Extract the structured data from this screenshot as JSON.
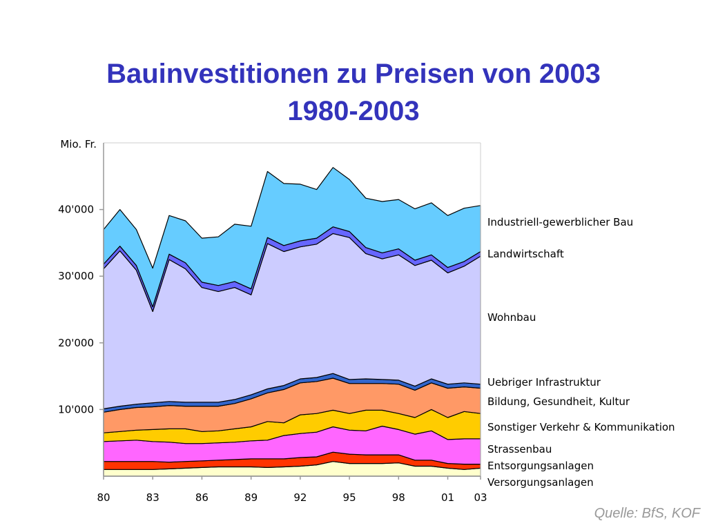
{
  "chart_data": {
    "type": "area",
    "stacked": true,
    "title": "Bauinvestitionen zu Preisen von 2003",
    "subtitle": "1980-2003",
    "ylabel": "Mio. Fr.",
    "ylim": [
      0,
      50000
    ],
    "yticks": [
      10000,
      20000,
      30000,
      40000
    ],
    "ytick_labels": [
      "10'000",
      "20'000",
      "30'000",
      "40'000"
    ],
    "x": [
      1980,
      1981,
      1982,
      1983,
      1984,
      1985,
      1986,
      1987,
      1988,
      1989,
      1990,
      1991,
      1992,
      1993,
      1994,
      1995,
      1996,
      1997,
      1998,
      1999,
      2000,
      2001,
      2002,
      2003
    ],
    "xlim": [
      1980,
      2003
    ],
    "xticks": [
      1980,
      1983,
      1986,
      1989,
      1992,
      1995,
      1998,
      2001,
      2003
    ],
    "xtick_labels": [
      "80",
      "83",
      "86",
      "89",
      "92",
      "95",
      "98",
      "01",
      "03"
    ],
    "grid": false,
    "legend_position": "right",
    "series": [
      {
        "name": "Versorgungsanlagen",
        "color": "#ffffcc",
        "values": [
          1000,
          1000,
          1000,
          1000,
          1100,
          1200,
          1300,
          1400,
          1400,
          1400,
          1300,
          1400,
          1500,
          1700,
          2200,
          1900,
          1900,
          1900,
          2000,
          1500,
          1500,
          1200,
          1000,
          1200
        ]
      },
      {
        "name": "Entsorgungsanlagen",
        "color": "#ff3300",
        "values": [
          1200,
          1200,
          1200,
          1200,
          1000,
          1000,
          1000,
          1000,
          1100,
          1200,
          1300,
          1200,
          1300,
          1200,
          1400,
          1400,
          1300,
          1300,
          1200,
          900,
          900,
          700,
          800,
          600
        ]
      },
      {
        "name": "Strassenbau",
        "color": "#ff66ff",
        "values": [
          3000,
          3100,
          3200,
          3000,
          3000,
          2700,
          2600,
          2600,
          2600,
          2700,
          2800,
          3500,
          3600,
          3700,
          3800,
          3600,
          3600,
          4300,
          3800,
          3900,
          4400,
          3600,
          3800,
          3800
        ]
      },
      {
        "name": "Sonstiger Verkehr & Kommunikation",
        "color": "#ffcc00",
        "values": [
          1300,
          1400,
          1500,
          1800,
          2000,
          2200,
          1800,
          1800,
          2000,
          2100,
          2800,
          1900,
          2800,
          2800,
          2500,
          2500,
          3100,
          2400,
          2400,
          2500,
          3200,
          3300,
          4100,
          3800
        ]
      },
      {
        "name": "Bildung, Gesundheit, Kultur",
        "color": "#ff9966",
        "values": [
          3100,
          3300,
          3400,
          3400,
          3500,
          3400,
          3800,
          3700,
          3800,
          4200,
          4300,
          5000,
          4800,
          4800,
          4800,
          4500,
          4000,
          4000,
          4400,
          4100,
          4000,
          4400,
          3700,
          3800
        ]
      },
      {
        "name": "Uebriger Infrastruktur",
        "color": "#3366cc",
        "values": [
          500,
          500,
          500,
          600,
          600,
          600,
          600,
          600,
          600,
          600,
          600,
          600,
          600,
          600,
          700,
          600,
          700,
          600,
          600,
          600,
          600,
          600,
          600,
          600
        ]
      },
      {
        "name": "Wohnbau",
        "color": "#ccccff",
        "values": [
          21000,
          23300,
          20100,
          13700,
          21300,
          20000,
          17200,
          16600,
          16800,
          15000,
          21800,
          20100,
          19800,
          20000,
          21000,
          21300,
          18800,
          18100,
          18800,
          18100,
          17800,
          16700,
          17500,
          19200
        ]
      },
      {
        "name": "Landwirtschaft",
        "color": "#6666ff",
        "values": [
          700,
          700,
          700,
          700,
          800,
          900,
          800,
          900,
          900,
          900,
          900,
          900,
          900,
          900,
          1000,
          900,
          900,
          900,
          900,
          800,
          800,
          800,
          700,
          700
        ]
      },
      {
        "name": "Industriell-gewerblicher Bau",
        "color": "#66ccff",
        "values": [
          5200,
          5500,
          5400,
          5800,
          5800,
          6300,
          6600,
          7300,
          8600,
          9400,
          9900,
          9300,
          8500,
          7300,
          8900,
          7800,
          7400,
          7700,
          7400,
          7700,
          7800,
          7800,
          8000,
          6900
        ]
      }
    ]
  },
  "source": "Quelle: BfS, KOF"
}
